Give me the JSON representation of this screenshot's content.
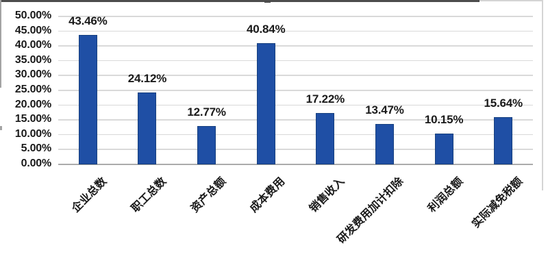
{
  "chart_data": {
    "type": "bar",
    "title": "",
    "xlabel": "",
    "ylabel": "",
    "grid": true,
    "legend": "none",
    "categories": [
      "企业总数",
      "职工总数",
      "资产总额",
      "成本费用",
      "销售收入",
      "研发费用加计扣除",
      "利润总额",
      "实际减免税额"
    ],
    "values": [
      43.46,
      24.12,
      12.77,
      40.84,
      17.22,
      13.47,
      10.15,
      15.64
    ],
    "value_labels": [
      "43.46%",
      "24.12%",
      "12.77%",
      "40.84%",
      "17.22%",
      "13.47%",
      "10.15%",
      "15.64%"
    ],
    "y_axis": {
      "min": 0,
      "max": 50,
      "step": 5,
      "tick_labels": [
        "0.00%",
        "5.00%",
        "10.00%",
        "15.00%",
        "20.00%",
        "25.00%",
        "30.00%",
        "35.00%",
        "40.00%",
        "45.00%",
        "50.00%"
      ]
    },
    "colors": {
      "bar_fill": "#1F4FA5",
      "bar_edge": "#17407E",
      "text": "#1A1A1A",
      "gridline": "#D9D9D9",
      "axis_line": "#ABABAB"
    }
  },
  "frame": {
    "top_crop_line_color": "#4D4D4D",
    "side_border_color": "#A3A3A3",
    "light_border_color": "#D4D4D4"
  }
}
